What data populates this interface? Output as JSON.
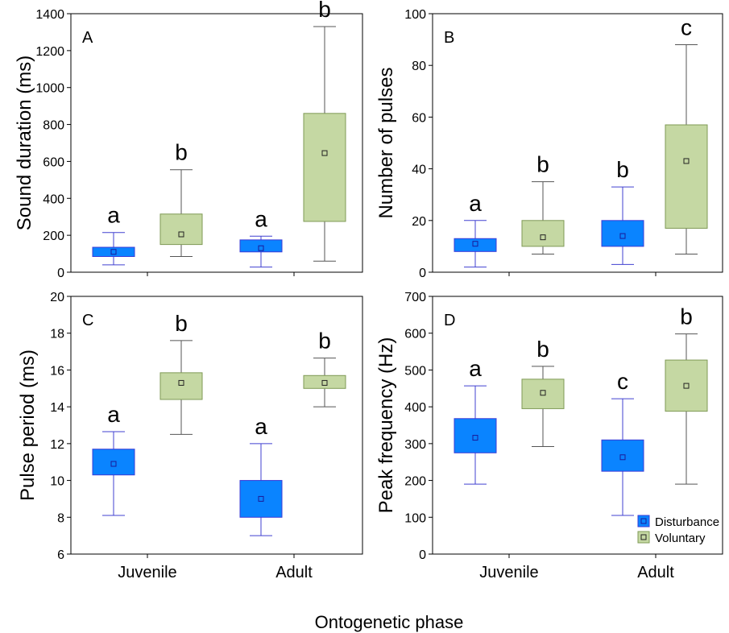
{
  "colors": {
    "disturbance_fill": "#0a84ff",
    "disturbance_stroke": "#3b3bd6",
    "voluntary_fill": "#c5d8a3",
    "voluntary_stroke": "#7f9a55",
    "whisker_dist": "#4040d0",
    "whisker_vol": "#555555"
  },
  "x_title": "Ontogenetic phase",
  "legend": [
    "Disturbance",
    "Voluntary"
  ],
  "chart_data": [
    {
      "type": "box",
      "panel": "A",
      "ylabel": "Sound duration (ms)",
      "ylim": [
        0,
        1400
      ],
      "yticks": [
        0,
        200,
        400,
        600,
        800,
        1000,
        1200,
        1400
      ],
      "categories": [
        "Juvenile",
        "Adult"
      ],
      "series": [
        {
          "name": "Disturbance",
          "boxes": [
            {
              "min": 40,
              "q1": 85,
              "center": 110,
              "q3": 135,
              "max": 215,
              "letter": "a"
            },
            {
              "min": 28,
              "q1": 110,
              "center": 130,
              "q3": 175,
              "max": 195,
              "letter": "a"
            }
          ]
        },
        {
          "name": "Voluntary",
          "boxes": [
            {
              "min": 85,
              "q1": 150,
              "center": 205,
              "q3": 315,
              "max": 555,
              "letter": "b"
            },
            {
              "min": 60,
              "q1": 275,
              "center": 645,
              "q3": 860,
              "max": 1330,
              "letter": "b"
            }
          ]
        }
      ]
    },
    {
      "type": "box",
      "panel": "B",
      "ylabel": "Number of pulses",
      "ylim": [
        0,
        100
      ],
      "yticks": [
        0,
        20,
        40,
        60,
        80,
        100
      ],
      "categories": [
        "Juvenile",
        "Adult"
      ],
      "series": [
        {
          "name": "Disturbance",
          "boxes": [
            {
              "min": 2,
              "q1": 8,
              "center": 11,
              "q3": 13,
              "max": 20,
              "letter": "a"
            },
            {
              "min": 3,
              "q1": 10,
              "center": 14,
              "q3": 20,
              "max": 33,
              "letter": "b"
            }
          ]
        },
        {
          "name": "Voluntary",
          "boxes": [
            {
              "min": 7,
              "q1": 10,
              "center": 13.5,
              "q3": 20,
              "max": 35,
              "letter": "b"
            },
            {
              "min": 7,
              "q1": 17,
              "center": 43,
              "q3": 57,
              "max": 88,
              "letter": "c"
            }
          ]
        }
      ]
    },
    {
      "type": "box",
      "panel": "C",
      "ylabel": "Pulse period (ms)",
      "ylim": [
        6,
        20
      ],
      "yticks": [
        6,
        8,
        10,
        12,
        14,
        16,
        18,
        20
      ],
      "categories": [
        "Juvenile",
        "Adult"
      ],
      "series": [
        {
          "name": "Disturbance",
          "boxes": [
            {
              "min": 8.1,
              "q1": 10.3,
              "center": 10.9,
              "q3": 11.7,
              "max": 12.65,
              "letter": "a"
            },
            {
              "min": 7.0,
              "q1": 8.0,
              "center": 9.0,
              "q3": 10.0,
              "max": 12.0,
              "letter": "a"
            }
          ]
        },
        {
          "name": "Voluntary",
          "boxes": [
            {
              "min": 12.5,
              "q1": 14.4,
              "center": 15.3,
              "q3": 15.85,
              "max": 17.6,
              "letter": "b"
            },
            {
              "min": 14.0,
              "q1": 15.0,
              "center": 15.3,
              "q3": 15.7,
              "max": 16.65,
              "letter": "b"
            }
          ]
        }
      ]
    },
    {
      "type": "box",
      "panel": "D",
      "ylabel": "Peak frequency (Hz)",
      "ylim": [
        0,
        700
      ],
      "yticks": [
        0,
        100,
        200,
        300,
        400,
        500,
        600,
        700
      ],
      "categories": [
        "Juvenile",
        "Adult"
      ],
      "series": [
        {
          "name": "Disturbance",
          "boxes": [
            {
              "min": 190,
              "q1": 275,
              "center": 316,
              "q3": 368,
              "max": 457,
              "letter": "a"
            },
            {
              "min": 105,
              "q1": 225,
              "center": 263,
              "q3": 310,
              "max": 422,
              "letter": "c"
            }
          ]
        },
        {
          "name": "Voluntary",
          "boxes": [
            {
              "min": 292,
              "q1": 395,
              "center": 438,
              "q3": 475,
              "max": 510,
              "letter": "b"
            },
            {
              "min": 190,
              "q1": 388,
              "center": 457,
              "q3": 527,
              "max": 598,
              "letter": "b"
            }
          ]
        }
      ]
    }
  ]
}
